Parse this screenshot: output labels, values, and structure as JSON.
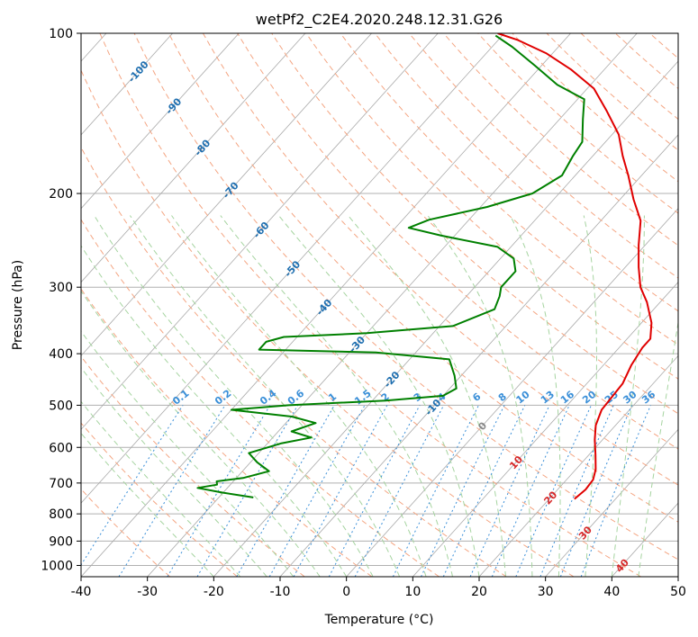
{
  "chart_data": {
    "type": "skew-t",
    "title": "wetPf2_C2E4.2020.248.12.31.G26",
    "xlabel": "Temperature (°C)",
    "ylabel": "Pressure (hPa)",
    "xlim": [
      -40,
      50
    ],
    "ylim": [
      1050,
      100
    ],
    "y_scale": "log",
    "x_ticks": [
      "-40",
      "-30",
      "-20",
      "-10",
      "0",
      "10",
      "20",
      "30",
      "40",
      "50"
    ],
    "y_ticks": [
      "100",
      "200",
      "300",
      "400",
      "500",
      "600",
      "700",
      "800",
      "900",
      "1000"
    ],
    "grid": true,
    "colors": {
      "temperature": "#e00000",
      "dewpoint": "#008000",
      "isotherm": "#aaaaaa",
      "dry_adiabat": "#f4a582",
      "moist_adiabat": "#a6d4a0",
      "mixing_ratio": "#3a8fd8",
      "isotherm_label": "#1f6fb0"
    },
    "isotherm_labels": [
      {
        "value": "-100",
        "p": 118
      },
      {
        "value": "-90",
        "p": 137
      },
      {
        "value": "-80",
        "p": 164
      },
      {
        "value": "-70",
        "p": 197
      },
      {
        "value": "-60",
        "p": 234
      },
      {
        "value": "-50",
        "p": 277
      },
      {
        "value": "-40",
        "p": 327
      },
      {
        "value": "-30",
        "p": 384
      },
      {
        "value": "-20",
        "p": 447
      },
      {
        "value": "-10",
        "p": 504
      },
      {
        "value": "0",
        "p": 547
      },
      {
        "value": "10",
        "p": 640
      },
      {
        "value": "20",
        "p": 746
      },
      {
        "value": "30",
        "p": 868
      },
      {
        "value": "40",
        "p": 1000
      }
    ],
    "mixing_ratio_labels": [
      "0.1",
      "0.2",
      "0.4",
      "0.6",
      "1",
      "1.5",
      "2",
      "3",
      "4",
      "6",
      "8",
      "10",
      "13",
      "16",
      "20",
      "25",
      "30",
      "36"
    ],
    "series": [
      {
        "name": "",
        "role": "temperature",
        "points": [
          {
            "t": 23.8,
            "p": 750
          },
          {
            "t": 24.2,
            "p": 720
          },
          {
            "t": 24.0,
            "p": 690
          },
          {
            "t": 23.0,
            "p": 660
          },
          {
            "t": 21.0,
            "p": 620
          },
          {
            "t": 18.8,
            "p": 580
          },
          {
            "t": 17.0,
            "p": 545
          },
          {
            "t": 15.8,
            "p": 510
          },
          {
            "t": 15.6,
            "p": 480
          },
          {
            "t": 15.4,
            "p": 455
          },
          {
            "t": 14.2,
            "p": 420
          },
          {
            "t": 13.5,
            "p": 390
          },
          {
            "t": 13.5,
            "p": 375
          },
          {
            "t": 11.5,
            "p": 350
          },
          {
            "t": 8.0,
            "p": 320
          },
          {
            "t": 5.0,
            "p": 300
          },
          {
            "t": 2.0,
            "p": 275
          },
          {
            "t": -1.0,
            "p": 250
          },
          {
            "t": -4.0,
            "p": 225
          },
          {
            "t": -8.0,
            "p": 205
          },
          {
            "t": -12.0,
            "p": 185
          },
          {
            "t": -15.5,
            "p": 170
          },
          {
            "t": -19.0,
            "p": 155
          },
          {
            "t": -24.0,
            "p": 140
          },
          {
            "t": -29.0,
            "p": 127
          },
          {
            "t": -35.0,
            "p": 117
          },
          {
            "t": -41.0,
            "p": 109
          },
          {
            "t": -47.0,
            "p": 103
          },
          {
            "t": -51.0,
            "p": 100
          }
        ]
      },
      {
        "name": "",
        "role": "dewpoint",
        "points": [
          {
            "t": -24.8,
            "p": 745
          },
          {
            "t": -30.0,
            "p": 730
          },
          {
            "t": -34.5,
            "p": 715
          },
          {
            "t": -32.0,
            "p": 705
          },
          {
            "t": -32.5,
            "p": 695
          },
          {
            "t": -29.0,
            "p": 685
          },
          {
            "t": -26.0,
            "p": 665
          },
          {
            "t": -29.0,
            "p": 640
          },
          {
            "t": -31.5,
            "p": 615
          },
          {
            "t": -28.0,
            "p": 590
          },
          {
            "t": -24.2,
            "p": 575
          },
          {
            "t": -28.0,
            "p": 560
          },
          {
            "t": -25.5,
            "p": 540
          },
          {
            "t": -30.0,
            "p": 525
          },
          {
            "t": -40.0,
            "p": 510
          },
          {
            "t": -32.0,
            "p": 500
          },
          {
            "t": -18.0,
            "p": 490
          },
          {
            "t": -10.0,
            "p": 480
          },
          {
            "t": -9.0,
            "p": 465
          },
          {
            "t": -11.0,
            "p": 440
          },
          {
            "t": -14.0,
            "p": 410
          },
          {
            "t": -26.0,
            "p": 398
          },
          {
            "t": -44.0,
            "p": 393
          },
          {
            "t": -44.0,
            "p": 380
          },
          {
            "t": -42.0,
            "p": 372
          },
          {
            "t": -30.0,
            "p": 366
          },
          {
            "t": -18.0,
            "p": 355
          },
          {
            "t": -14.0,
            "p": 330
          },
          {
            "t": -15.0,
            "p": 312
          },
          {
            "t": -16.0,
            "p": 300
          },
          {
            "t": -16.0,
            "p": 280
          },
          {
            "t": -18.0,
            "p": 265
          },
          {
            "t": -22.0,
            "p": 252
          },
          {
            "t": -32.0,
            "p": 240
          },
          {
            "t": -38.0,
            "p": 232
          },
          {
            "t": -36.0,
            "p": 224
          },
          {
            "t": -29.0,
            "p": 212
          },
          {
            "t": -24.0,
            "p": 200
          },
          {
            "t": -22.0,
            "p": 185
          },
          {
            "t": -23.0,
            "p": 170
          },
          {
            "t": -23.5,
            "p": 160
          },
          {
            "t": -26.5,
            "p": 145
          },
          {
            "t": -29.0,
            "p": 133
          },
          {
            "t": -35.0,
            "p": 125
          },
          {
            "t": -41.0,
            "p": 115
          },
          {
            "t": -47.0,
            "p": 106
          },
          {
            "t": -51.0,
            "p": 101
          }
        ]
      }
    ]
  }
}
